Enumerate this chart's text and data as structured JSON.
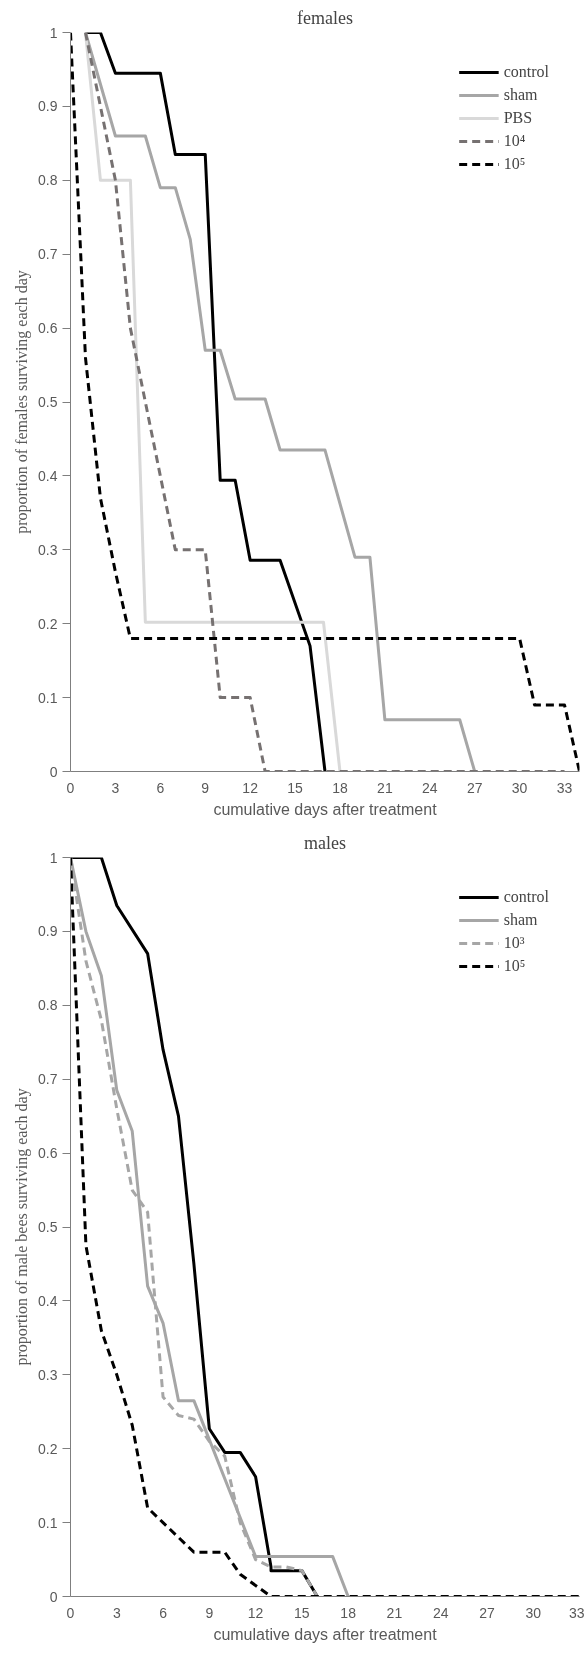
{
  "chart_data": [
    {
      "type": "line",
      "title": "females",
      "xlabel": "cumulative days after treatment",
      "ylabel": "proportion of females surviving each day",
      "xlim": [
        0,
        34
      ],
      "xticks": [
        0,
        3,
        6,
        9,
        12,
        15,
        18,
        21,
        24,
        27,
        30,
        33
      ],
      "ylim": [
        0,
        1
      ],
      "yticks": [
        0,
        0.1,
        0.2,
        0.3,
        0.4,
        0.5,
        0.6,
        0.7,
        0.8,
        0.9,
        1
      ],
      "grid": false,
      "legend": "top right",
      "marker": "none",
      "series": [
        {
          "name": "control",
          "color": "#000000",
          "line_style": "solid",
          "x": [
            1,
            2,
            3,
            6,
            7,
            9,
            10,
            11,
            12,
            14,
            16,
            17
          ],
          "values": [
            1,
            1,
            0.945,
            0.945,
            0.835,
            0.835,
            0.394,
            0.394,
            0.286,
            0.286,
            0.17,
            0
          ]
        },
        {
          "name": "sham",
          "color": "#a6a6a6",
          "line_style": "solid",
          "x": [
            1,
            3,
            5,
            6,
            7,
            8,
            9,
            10,
            11,
            13,
            14,
            17,
            19,
            20,
            21,
            26,
            27
          ],
          "values": [
            1,
            0.86,
            0.86,
            0.79,
            0.79,
            0.72,
            0.57,
            0.57,
            0.504,
            0.504,
            0.435,
            0.435,
            0.29,
            0.29,
            0.07,
            0.07,
            0
          ]
        },
        {
          "name": "PBS",
          "color": "#d9d9d9",
          "line_style": "solid",
          "x": [
            1,
            2,
            4,
            5,
            16.9,
            18
          ],
          "values": [
            1,
            0.8,
            0.8,
            0.202,
            0.202,
            0
          ]
        },
        {
          "name": "10⁴",
          "color": "#767171",
          "line_style": "dashed",
          "x": [
            1,
            3,
            4,
            7,
            9,
            10,
            12,
            13,
            33
          ],
          "values": [
            1,
            0.8,
            0.6,
            0.3,
            0.3,
            0.1,
            0.1,
            0,
            0
          ]
        },
        {
          "name": "10⁵",
          "color": "#000000",
          "line_style": "dashed",
          "x": [
            0,
            1,
            2,
            3,
            4,
            30,
            31,
            33,
            34
          ],
          "values": [
            1,
            0.56,
            0.37,
            0.27,
            0.18,
            0.18,
            0.09,
            0.09,
            0
          ]
        }
      ]
    },
    {
      "type": "line",
      "title": "males",
      "xlabel": "cumulative days after treatment",
      "ylabel": "proportion of male bees surviving each day",
      "xlim": [
        0,
        33
      ],
      "xticks": [
        0,
        3,
        6,
        9,
        12,
        15,
        18,
        21,
        24,
        27,
        30,
        33
      ],
      "ylim": [
        0,
        1
      ],
      "yticks": [
        0,
        0.1,
        0.2,
        0.3,
        0.4,
        0.5,
        0.6,
        0.7,
        0.8,
        0.9,
        1
      ],
      "grid": false,
      "legend": "top right",
      "marker": "none",
      "series": [
        {
          "name": "control",
          "color": "#000000",
          "line_style": "solid",
          "x": [
            0,
            2,
            3,
            5,
            6,
            7,
            8,
            9,
            10,
            11,
            12,
            13,
            13,
            15,
            16
          ],
          "values": [
            1,
            1,
            0.935,
            0.87,
            0.74,
            0.65,
            0.45,
            0.227,
            0.195,
            0.195,
            0.162,
            0.04,
            0.035,
            0.035,
            0
          ]
        },
        {
          "name": "sham",
          "color": "#a6a6a6",
          "line_style": "solid",
          "x": [
            0,
            1,
            2,
            3,
            4,
            5,
            6,
            7,
            8,
            12,
            17,
            18
          ],
          "values": [
            1,
            0.9,
            0.84,
            0.685,
            0.63,
            0.42,
            0.37,
            0.265,
            0.265,
            0.054,
            0.054,
            0
          ]
        },
        {
          "name": "10³",
          "color": "#a6a6a6",
          "line_style": "dashed",
          "x": [
            0,
            1,
            2,
            3,
            4,
            5,
            6,
            7,
            8,
            9,
            10,
            11,
            12,
            13,
            14,
            15,
            16
          ],
          "values": [
            1,
            0.86,
            0.78,
            0.66,
            0.55,
            0.52,
            0.27,
            0.245,
            0.24,
            0.21,
            0.19,
            0.1,
            0.05,
            0.04,
            0.04,
            0.035,
            0
          ]
        },
        {
          "name": "10⁵",
          "color": "#000000",
          "line_style": "dashed",
          "x": [
            0,
            1,
            2,
            3,
            4,
            5,
            6,
            7,
            8,
            9,
            10,
            11,
            12,
            13,
            33
          ],
          "values": [
            1,
            0.475,
            0.36,
            0.3,
            0.232,
            0.12,
            0.1,
            0.08,
            0.06,
            0.06,
            0.06,
            0.03,
            0.015,
            0,
            0
          ]
        }
      ]
    }
  ]
}
